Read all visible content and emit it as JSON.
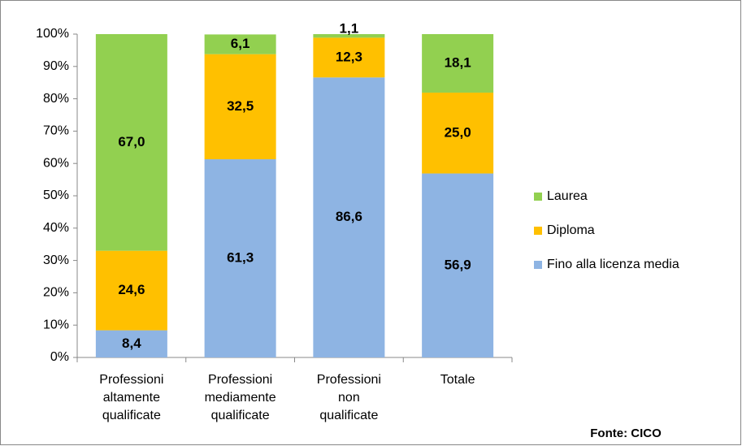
{
  "chart_data": {
    "type": "stacked_bar",
    "categories": [
      "Professioni\naltamente\nqualificate",
      "Professioni\nmediamente\nqualificate",
      "Professioni\nnon\nqualificate",
      "Totale"
    ],
    "series": [
      {
        "name": "Fino alla licenza media",
        "color": "#8EB4E3",
        "values": [
          8.4,
          61.3,
          86.6,
          56.9
        ],
        "value_labels": [
          "8,4",
          "61,3",
          "86,6",
          "56,9"
        ]
      },
      {
        "name": "Diploma",
        "color": "#FFC000",
        "values": [
          24.6,
          32.5,
          12.3,
          25.0
        ],
        "value_labels": [
          "24,6",
          "32,5",
          "12,3",
          "25,0"
        ]
      },
      {
        "name": "Laurea",
        "color": "#92D050",
        "values": [
          67.0,
          6.1,
          1.1,
          18.1
        ],
        "value_labels": [
          "67,0",
          "6,1",
          "1,1",
          "18,1"
        ]
      }
    ],
    "ylim": [
      0,
      100
    ],
    "yticks": [
      {
        "value": 0,
        "label": "0%"
      },
      {
        "value": 10,
        "label": "10%"
      },
      {
        "value": 20,
        "label": "20%"
      },
      {
        "value": 30,
        "label": "30%"
      },
      {
        "value": 40,
        "label": "40%"
      },
      {
        "value": 50,
        "label": "50%"
      },
      {
        "value": 60,
        "label": "60%"
      },
      {
        "value": 70,
        "label": "70%"
      },
      {
        "value": 80,
        "label": "80%"
      },
      {
        "value": 90,
        "label": "90%"
      },
      {
        "value": 100,
        "label": "100%"
      }
    ],
    "legend": "right",
    "source": "Fonte: CICO"
  }
}
